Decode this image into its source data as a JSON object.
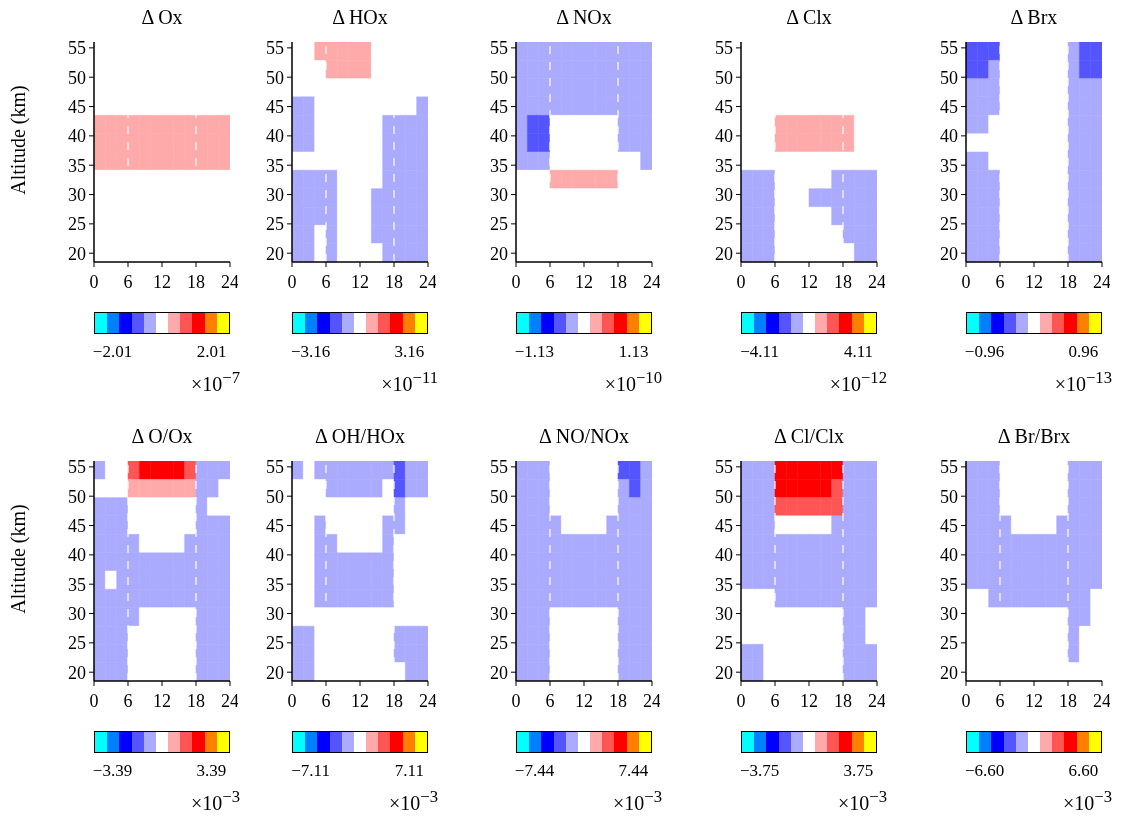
{
  "chart_data": [
    {
      "type": "heatmap",
      "title": "Δ Ox",
      "ylabel": "Altitude (km)",
      "x": [
        1,
        3,
        5,
        7,
        9,
        11,
        13,
        15,
        17,
        19,
        21,
        23
      ],
      "y": [
        54.4,
        51.3,
        48.2,
        45.1,
        41.9,
        38.8,
        35.7,
        32.6,
        29.4,
        26.3,
        23.2,
        20.1
      ],
      "xlim": [
        0,
        24
      ],
      "xticks": [
        0,
        6,
        12,
        18,
        24
      ],
      "ylim": [
        18.5,
        56
      ],
      "yticks": [
        20,
        25,
        30,
        35,
        40,
        45,
        50,
        55
      ],
      "clim": [
        -2.76,
        2.76
      ],
      "cticks": [
        {
          "value": -2.01,
          "label": "−2.01"
        },
        {
          "value": 2.01,
          "label": "2.01"
        }
      ],
      "clabel": "×10$^{−7}$",
      "ref_lines": [
        {
          "axis": "x",
          "value": 6,
          "color": "#ffffff",
          "line_style": "dashed"
        },
        {
          "axis": "x",
          "value": 18,
          "color": "#ffffff",
          "line_style": "dashed"
        }
      ],
      "cells": [
        [
          0,
          0,
          0,
          0,
          0,
          0,
          0,
          0,
          0,
          0,
          0,
          0
        ],
        [
          0,
          0,
          0,
          0,
          0,
          0,
          0,
          0,
          0,
          0,
          0,
          0
        ],
        [
          0,
          0,
          0,
          0,
          0,
          0,
          0,
          0,
          0,
          0,
          0,
          0
        ],
        [
          0,
          0,
          0,
          0,
          0,
          0,
          0,
          0,
          0,
          0,
          0,
          0
        ],
        [
          0.5,
          0.5,
          0.5,
          0.5,
          0.5,
          0.5,
          0.5,
          0.5,
          0.5,
          0.5,
          0.5,
          0.5
        ],
        [
          0.5,
          0.5,
          0.5,
          0.5,
          0.5,
          0.5,
          0.5,
          0.5,
          0.5,
          0.5,
          0.5,
          0.5
        ],
        [
          0.5,
          0.5,
          0.5,
          0.5,
          0.5,
          0.5,
          0.5,
          0.5,
          0.5,
          0.5,
          0.5,
          0.5
        ],
        [
          0,
          0,
          0,
          0,
          0,
          0,
          0,
          0,
          0,
          0,
          0,
          0
        ],
        [
          0,
          0,
          0,
          0,
          0,
          0,
          0,
          0,
          0,
          0,
          0,
          0
        ],
        [
          0,
          0,
          0,
          0,
          0,
          0,
          0,
          0,
          0,
          0,
          0,
          0
        ],
        [
          0,
          0,
          0,
          0,
          0,
          0,
          0,
          0,
          0,
          0,
          0,
          0
        ],
        [
          0,
          0,
          0,
          0,
          0,
          0,
          0,
          0,
          0,
          0,
          0,
          0
        ]
      ]
    },
    {
      "type": "heatmap",
      "title": "Δ HOx",
      "x": [
        1,
        3,
        5,
        7,
        9,
        11,
        13,
        15,
        17,
        19,
        21,
        23
      ],
      "y": [
        54.4,
        51.3,
        48.2,
        45.1,
        41.9,
        38.8,
        35.7,
        32.6,
        29.4,
        26.3,
        23.2,
        20.1
      ],
      "xlim": [
        0,
        24
      ],
      "xticks": [
        0,
        6,
        12,
        18,
        24
      ],
      "ylim": [
        18.5,
        56
      ],
      "yticks": [
        20,
        25,
        30,
        35,
        40,
        45,
        50,
        55
      ],
      "clim": [
        -4.35,
        4.35
      ],
      "cticks": [
        {
          "value": -3.16,
          "label": "−3.16"
        },
        {
          "value": 3.16,
          "label": "3.16"
        }
      ],
      "clabel": "×10$^{−11}$",
      "ref_lines": [
        {
          "axis": "x",
          "value": 6,
          "color": "#ffffff",
          "line_style": "dashed"
        },
        {
          "axis": "x",
          "value": 18,
          "color": "#ffffff",
          "line_style": "dashed"
        }
      ],
      "cells": [
        [
          0,
          0,
          0.79,
          0.79,
          0.79,
          0.79,
          0.79,
          0,
          0,
          0,
          0,
          0
        ],
        [
          0,
          0,
          0,
          0.79,
          0.79,
          0.79,
          0.79,
          0,
          0,
          0,
          0,
          0
        ],
        [
          0,
          0,
          0,
          0,
          0,
          0,
          0,
          0,
          0,
          0,
          0,
          0
        ],
        [
          -0.79,
          -0.79,
          0,
          0,
          0,
          0,
          0,
          0,
          0,
          0,
          0,
          -0.79
        ],
        [
          -0.79,
          -0.79,
          0,
          0,
          0,
          0,
          0,
          0,
          -0.79,
          -0.79,
          -0.79,
          -0.79
        ],
        [
          -0.79,
          -0.79,
          0,
          0,
          0,
          0,
          0,
          0,
          -0.79,
          -0.79,
          -0.79,
          -0.79
        ],
        [
          0,
          0,
          0,
          0,
          0,
          0,
          0,
          0,
          -0.79,
          -0.79,
          -0.79,
          -0.79
        ],
        [
          -0.79,
          -0.79,
          -0.79,
          -0.79,
          0,
          0,
          0,
          0,
          -0.79,
          -0.79,
          -0.79,
          -0.79
        ],
        [
          -0.79,
          -0.79,
          -0.79,
          -0.79,
          0,
          0,
          0,
          -0.79,
          -0.79,
          -0.79,
          -0.79,
          -0.79
        ],
        [
          -0.79,
          -0.79,
          -0.79,
          -0.79,
          0,
          0,
          0,
          -0.79,
          -0.79,
          -0.79,
          -0.79,
          -0.79
        ],
        [
          -0.79,
          -0.79,
          0,
          -0.79,
          0,
          0,
          0,
          -0.79,
          -0.79,
          -0.79,
          -0.79,
          -0.79
        ],
        [
          -0.79,
          -0.79,
          0,
          -0.79,
          0,
          0,
          0,
          0,
          -0.79,
          -0.79,
          -0.79,
          -0.79
        ]
      ]
    },
    {
      "type": "heatmap",
      "title": "Δ NOx",
      "x": [
        1,
        3,
        5,
        7,
        9,
        11,
        13,
        15,
        17,
        19,
        21,
        23
      ],
      "y": [
        54.4,
        51.3,
        48.2,
        45.1,
        41.9,
        38.8,
        35.7,
        32.6,
        29.4,
        26.3,
        23.2,
        20.1
      ],
      "xlim": [
        0,
        24
      ],
      "xticks": [
        0,
        6,
        12,
        18,
        24
      ],
      "ylim": [
        18.5,
        56
      ],
      "yticks": [
        20,
        25,
        30,
        35,
        40,
        45,
        50,
        55
      ],
      "clim": [
        -1.55,
        1.55
      ],
      "cticks": [
        {
          "value": -1.13,
          "label": "−1.13"
        },
        {
          "value": 1.13,
          "label": "1.13"
        }
      ],
      "clabel": "×10$^{−10}$",
      "ref_lines": [
        {
          "axis": "x",
          "value": 6,
          "color": "#ffffff",
          "line_style": "dashed"
        },
        {
          "axis": "x",
          "value": 18,
          "color": "#ffffff",
          "line_style": "dashed"
        }
      ],
      "cells": [
        [
          -0.28,
          -0.28,
          -0.28,
          -0.28,
          -0.28,
          -0.28,
          -0.28,
          -0.28,
          -0.28,
          -0.28,
          -0.28,
          -0.28
        ],
        [
          -0.28,
          -0.28,
          -0.28,
          -0.28,
          -0.28,
          -0.28,
          -0.28,
          -0.28,
          -0.28,
          -0.28,
          -0.28,
          -0.28
        ],
        [
          -0.28,
          -0.28,
          -0.28,
          -0.28,
          -0.28,
          -0.28,
          -0.28,
          -0.28,
          -0.28,
          -0.28,
          -0.28,
          -0.28
        ],
        [
          -0.28,
          -0.28,
          -0.28,
          -0.28,
          -0.28,
          -0.28,
          -0.28,
          -0.28,
          -0.28,
          -0.28,
          -0.28,
          -0.28
        ],
        [
          -0.28,
          -0.57,
          -0.57,
          0,
          0,
          0,
          0,
          0,
          0,
          -0.28,
          -0.28,
          -0.28
        ],
        [
          -0.28,
          -0.57,
          -0.57,
          0,
          0,
          0,
          0,
          0,
          0,
          -0.28,
          -0.28,
          -0.28
        ],
        [
          -0.28,
          -0.28,
          -0.28,
          0,
          0,
          0,
          0,
          0,
          0,
          0,
          0,
          -0.28
        ],
        [
          0,
          0,
          0,
          0.28,
          0.28,
          0.28,
          0.28,
          0.28,
          0.28,
          0,
          0,
          0
        ],
        [
          0,
          0,
          0,
          0,
          0,
          0,
          0,
          0,
          0,
          0,
          0,
          0
        ],
        [
          0,
          0,
          0,
          0,
          0,
          0,
          0,
          0,
          0,
          0,
          0,
          0
        ],
        [
          0,
          0,
          0,
          0,
          0,
          0,
          0,
          0,
          0,
          0,
          0,
          0
        ],
        [
          0,
          0,
          0,
          0,
          0,
          0,
          0,
          0,
          0,
          0,
          0,
          0
        ]
      ]
    },
    {
      "type": "heatmap",
      "title": "Δ Clx",
      "x": [
        1,
        3,
        5,
        7,
        9,
        11,
        13,
        15,
        17,
        19,
        21,
        23
      ],
      "y": [
        54.4,
        51.3,
        48.2,
        45.1,
        41.9,
        38.8,
        35.7,
        32.6,
        29.4,
        26.3,
        23.2,
        20.1
      ],
      "xlim": [
        0,
        24
      ],
      "xticks": [
        0,
        6,
        12,
        18,
        24
      ],
      "ylim": [
        18.5,
        56
      ],
      "yticks": [
        20,
        25,
        30,
        35,
        40,
        45,
        50,
        55
      ],
      "clim": [
        -5.65,
        5.65
      ],
      "cticks": [
        {
          "value": -4.11,
          "label": "−4.11"
        },
        {
          "value": 4.11,
          "label": "4.11"
        }
      ],
      "clabel": "×10$^{−12}$",
      "ref_lines": [
        {
          "axis": "x",
          "value": 6,
          "color": "#ffffff",
          "line_style": "dashed"
        },
        {
          "axis": "x",
          "value": 18,
          "color": "#ffffff",
          "line_style": "dashed"
        }
      ],
      "cells": [
        [
          0,
          0,
          0,
          0,
          0,
          0,
          0,
          0,
          0,
          0,
          0,
          0
        ],
        [
          0,
          0,
          0,
          0,
          0,
          0,
          0,
          0,
          0,
          0,
          0,
          0
        ],
        [
          0,
          0,
          0,
          0,
          0,
          0,
          0,
          0,
          0,
          0,
          0,
          0
        ],
        [
          0,
          0,
          0,
          0,
          0,
          0,
          0,
          0,
          0,
          0,
          0,
          0
        ],
        [
          0,
          0,
          0,
          1.03,
          1.03,
          1.03,
          1.03,
          1.03,
          1.03,
          1.03,
          0,
          0
        ],
        [
          0,
          0,
          0,
          1.03,
          1.03,
          1.03,
          1.03,
          1.03,
          1.03,
          1.03,
          0,
          0
        ],
        [
          0,
          0,
          0,
          0,
          0,
          0,
          0,
          0,
          0,
          0,
          0,
          0
        ],
        [
          -1.03,
          -1.03,
          -1.03,
          0,
          0,
          0,
          0,
          0,
          -1.03,
          -1.03,
          -1.03,
          -1.03
        ],
        [
          -1.03,
          -1.03,
          -1.03,
          0,
          0,
          0,
          -1.03,
          -1.03,
          -1.03,
          -1.03,
          -1.03,
          -1.03
        ],
        [
          -1.03,
          -1.03,
          -1.03,
          0,
          0,
          0,
          0,
          0,
          -1.03,
          -1.03,
          -1.03,
          -1.03
        ],
        [
          -1.03,
          -1.03,
          -1.03,
          0,
          0,
          0,
          0,
          0,
          0,
          -1.03,
          -1.03,
          -1.03
        ],
        [
          -1.03,
          -1.03,
          -1.03,
          0,
          0,
          0,
          0,
          0,
          0,
          0,
          -1.03,
          -1.03
        ]
      ]
    },
    {
      "type": "heatmap",
      "title": "Δ Brx",
      "x": [
        1,
        3,
        5,
        7,
        9,
        11,
        13,
        15,
        17,
        19,
        21,
        23
      ],
      "y": [
        54.4,
        51.3,
        48.2,
        45.1,
        41.9,
        38.8,
        35.7,
        32.6,
        29.4,
        26.3,
        23.2,
        20.1
      ],
      "xlim": [
        0,
        24
      ],
      "xticks": [
        0,
        6,
        12,
        18,
        24
      ],
      "ylim": [
        18.5,
        56
      ],
      "yticks": [
        20,
        25,
        30,
        35,
        40,
        45,
        50,
        55
      ],
      "clim": [
        -1.32,
        1.32
      ],
      "cticks": [
        {
          "value": -0.96,
          "label": "−0.96"
        },
        {
          "value": 0.96,
          "label": "0.96"
        }
      ],
      "clabel": "×10$^{−13}$",
      "ref_lines": [
        {
          "axis": "x",
          "value": 6,
          "color": "#ffffff",
          "line_style": "dashed"
        },
        {
          "axis": "x",
          "value": 18,
          "color": "#ffffff",
          "line_style": "dashed"
        }
      ],
      "cells": [
        [
          -0.48,
          -0.48,
          -0.48,
          0,
          0,
          0,
          0,
          0,
          0,
          -0.24,
          -0.48,
          -0.48
        ],
        [
          -0.48,
          -0.48,
          -0.24,
          0,
          0,
          0,
          0,
          0,
          0,
          -0.24,
          -0.48,
          -0.48
        ],
        [
          -0.24,
          -0.24,
          -0.24,
          0,
          0,
          0,
          0,
          0,
          0,
          -0.24,
          -0.24,
          -0.24
        ],
        [
          -0.24,
          -0.24,
          -0.24,
          0,
          0,
          0,
          0,
          0,
          0,
          -0.24,
          -0.24,
          -0.24
        ],
        [
          -0.24,
          -0.24,
          0,
          0,
          0,
          0,
          0,
          0,
          0,
          -0.24,
          -0.24,
          -0.24
        ],
        [
          0,
          0,
          0,
          0,
          0,
          0,
          0,
          0,
          0,
          -0.24,
          -0.24,
          -0.24
        ],
        [
          -0.24,
          -0.24,
          0,
          0,
          0,
          0,
          0,
          0,
          0,
          -0.24,
          -0.24,
          -0.24
        ],
        [
          -0.24,
          -0.24,
          -0.24,
          0,
          0,
          0,
          0,
          0,
          0,
          -0.24,
          -0.24,
          -0.24
        ],
        [
          -0.24,
          -0.24,
          -0.24,
          0,
          0,
          0,
          0,
          0,
          0,
          -0.24,
          -0.24,
          -0.24
        ],
        [
          -0.24,
          -0.24,
          -0.24,
          0,
          0,
          0,
          0,
          0,
          0,
          -0.24,
          -0.24,
          -0.24
        ],
        [
          -0.24,
          -0.24,
          -0.24,
          0,
          0,
          0,
          0,
          0,
          0,
          -0.24,
          -0.24,
          -0.24
        ],
        [
          -0.24,
          -0.24,
          -0.24,
          0,
          0,
          0,
          0,
          0,
          0,
          -0.24,
          -0.24,
          -0.24
        ]
      ]
    },
    {
      "type": "heatmap",
      "title": "Δ O/Ox",
      "ylabel": "Altitude (km)",
      "x": [
        1,
        3,
        5,
        7,
        9,
        11,
        13,
        15,
        17,
        19,
        21,
        23
      ],
      "y": [
        54.4,
        51.3,
        48.2,
        45.1,
        41.9,
        38.8,
        35.7,
        32.6,
        29.4,
        26.3,
        23.2,
        20.1
      ],
      "xlim": [
        0,
        24
      ],
      "xticks": [
        0,
        6,
        12,
        18,
        24
      ],
      "ylim": [
        18.5,
        56
      ],
      "yticks": [
        20,
        25,
        30,
        35,
        40,
        45,
        50,
        55
      ],
      "clim": [
        -4.66,
        4.66
      ],
      "cticks": [
        {
          "value": -3.39,
          "label": "−3.39"
        },
        {
          "value": 3.39,
          "label": "3.39"
        }
      ],
      "clabel": "×10$^{−3}$",
      "ref_lines": [
        {
          "axis": "x",
          "value": 6,
          "color": "#ffffff",
          "line_style": "dashed"
        },
        {
          "axis": "x",
          "value": 18,
          "color": "#ffffff",
          "line_style": "dashed"
        }
      ],
      "cells": [
        [
          -0.85,
          0,
          0,
          1.7,
          2.54,
          2.54,
          2.54,
          2.54,
          1.7,
          -0.85,
          -0.85,
          -0.85
        ],
        [
          0,
          0,
          0,
          0.85,
          0.85,
          0.85,
          0.85,
          0.85,
          0.85,
          -0.85,
          -0.85,
          0
        ],
        [
          -0.85,
          -0.85,
          -0.85,
          0,
          0,
          0,
          0,
          0,
          0,
          -0.85,
          0,
          0
        ],
        [
          -0.85,
          -0.85,
          -0.85,
          0,
          0,
          0,
          0,
          0,
          0,
          -0.85,
          -0.85,
          -0.85
        ],
        [
          -0.85,
          -0.85,
          -0.85,
          -0.85,
          0,
          0,
          0,
          0,
          -0.85,
          -0.85,
          -0.85,
          -0.85
        ],
        [
          -0.85,
          -0.85,
          -0.85,
          -0.85,
          -0.85,
          -0.85,
          -0.85,
          -0.85,
          -0.85,
          -0.85,
          -0.85,
          -0.85
        ],
        [
          -0.85,
          0,
          -0.85,
          -0.85,
          -0.85,
          -0.85,
          -0.85,
          -0.85,
          -0.85,
          -0.85,
          -0.85,
          -0.85
        ],
        [
          -0.85,
          -0.85,
          -0.85,
          -0.85,
          -0.85,
          -0.85,
          -0.85,
          -0.85,
          -0.85,
          -0.85,
          -0.85,
          -0.85
        ],
        [
          -0.85,
          -0.85,
          -0.85,
          -0.85,
          0,
          0,
          0,
          0,
          0,
          -0.85,
          -0.85,
          -0.85
        ],
        [
          -0.85,
          -0.85,
          -0.85,
          0,
          0,
          0,
          0,
          0,
          0,
          -0.85,
          -0.85,
          -0.85
        ],
        [
          -0.85,
          -0.85,
          -0.85,
          0,
          0,
          0,
          0,
          0,
          0,
          -0.85,
          -0.85,
          -0.85
        ],
        [
          -0.85,
          -0.85,
          -0.85,
          0,
          0,
          0,
          0,
          0,
          0,
          -0.85,
          -0.85,
          -0.85
        ]
      ]
    },
    {
      "type": "heatmap",
      "title": "Δ OH/HOx",
      "x": [
        1,
        3,
        5,
        7,
        9,
        11,
        13,
        15,
        17,
        19,
        21,
        23
      ],
      "y": [
        54.4,
        51.3,
        48.2,
        45.1,
        41.9,
        38.8,
        35.7,
        32.6,
        29.4,
        26.3,
        23.2,
        20.1
      ],
      "xlim": [
        0,
        24
      ],
      "xticks": [
        0,
        6,
        12,
        18,
        24
      ],
      "ylim": [
        18.5,
        56
      ],
      "yticks": [
        20,
        25,
        30,
        35,
        40,
        45,
        50,
        55
      ],
      "clim": [
        -9.78,
        9.78
      ],
      "cticks": [
        {
          "value": -7.11,
          "label": "−7.11"
        },
        {
          "value": 7.11,
          "label": "7.11"
        }
      ],
      "clabel": "×10$^{−3}$",
      "ref_lines": [
        {
          "axis": "x",
          "value": 6,
          "color": "#ffffff",
          "line_style": "dashed"
        },
        {
          "axis": "x",
          "value": 18,
          "color": "#ffffff",
          "line_style": "dashed"
        }
      ],
      "cells": [
        [
          -1.78,
          0,
          -1.78,
          -1.78,
          -1.78,
          -1.78,
          -1.78,
          -1.78,
          -1.78,
          -3.56,
          -1.78,
          -1.78
        ],
        [
          0,
          0,
          0,
          -1.78,
          -1.78,
          -1.78,
          -1.78,
          -1.78,
          0,
          -3.56,
          -1.78,
          -1.78
        ],
        [
          0,
          0,
          0,
          0,
          0,
          0,
          0,
          0,
          0,
          -1.78,
          0,
          0
        ],
        [
          0,
          0,
          -1.78,
          0,
          0,
          0,
          0,
          0,
          -1.78,
          -1.78,
          0,
          0
        ],
        [
          0,
          0,
          -1.78,
          -1.78,
          0,
          0,
          0,
          0,
          -1.78,
          0,
          0,
          0
        ],
        [
          0,
          0,
          -1.78,
          -1.78,
          -1.78,
          -1.78,
          -1.78,
          -1.78,
          -1.78,
          0,
          0,
          0
        ],
        [
          0,
          0,
          -1.78,
          -1.78,
          -1.78,
          -1.78,
          -1.78,
          -1.78,
          -1.78,
          0,
          0,
          0
        ],
        [
          0,
          0,
          -1.78,
          -1.78,
          -1.78,
          -1.78,
          -1.78,
          -1.78,
          -1.78,
          0,
          0,
          0
        ],
        [
          0,
          0,
          0,
          0,
          0,
          0,
          0,
          0,
          0,
          0,
          0,
          0
        ],
        [
          -1.78,
          -1.78,
          0,
          0,
          0,
          0,
          0,
          0,
          0,
          -1.78,
          -1.78,
          -1.78
        ],
        [
          -1.78,
          -1.78,
          0,
          0,
          0,
          0,
          0,
          0,
          0,
          -1.78,
          -1.78,
          -1.78
        ],
        [
          -1.78,
          -1.78,
          0,
          0,
          0,
          0,
          0,
          0,
          0,
          0,
          -1.78,
          -1.78
        ]
      ]
    },
    {
      "type": "heatmap",
      "title": "Δ NO/NOx",
      "x": [
        1,
        3,
        5,
        7,
        9,
        11,
        13,
        15,
        17,
        19,
        21,
        23
      ],
      "y": [
        54.4,
        51.3,
        48.2,
        45.1,
        41.9,
        38.8,
        35.7,
        32.6,
        29.4,
        26.3,
        23.2,
        20.1
      ],
      "xlim": [
        0,
        24
      ],
      "xticks": [
        0,
        6,
        12,
        18,
        24
      ],
      "ylim": [
        18.5,
        56
      ],
      "yticks": [
        20,
        25,
        30,
        35,
        40,
        45,
        50,
        55
      ],
      "clim": [
        -10.23,
        10.23
      ],
      "cticks": [
        {
          "value": -7.44,
          "label": "−7.44"
        },
        {
          "value": 7.44,
          "label": "7.44"
        }
      ],
      "clabel": "×10$^{−3}$",
      "ref_lines": [
        {
          "axis": "x",
          "value": 6,
          "color": "#ffffff",
          "line_style": "dashed"
        },
        {
          "axis": "x",
          "value": 18,
          "color": "#ffffff",
          "line_style": "dashed"
        }
      ],
      "cells": [
        [
          -1.86,
          -1.86,
          -1.86,
          0,
          0,
          0,
          0,
          0,
          0,
          -3.72,
          -3.72,
          -1.86
        ],
        [
          -1.86,
          -1.86,
          -1.86,
          0,
          0,
          0,
          0,
          0,
          0,
          -1.86,
          -3.72,
          -1.86
        ],
        [
          -1.86,
          -1.86,
          -1.86,
          0,
          0,
          0,
          0,
          0,
          0,
          -1.86,
          -1.86,
          -1.86
        ],
        [
          -1.86,
          -1.86,
          -1.86,
          -1.86,
          0,
          0,
          0,
          0,
          -1.86,
          -1.86,
          -1.86,
          -1.86
        ],
        [
          -1.86,
          -1.86,
          -1.86,
          -1.86,
          -1.86,
          -1.86,
          -1.86,
          -1.86,
          -1.86,
          -1.86,
          -1.86,
          -1.86
        ],
        [
          -1.86,
          -1.86,
          -1.86,
          -1.86,
          -1.86,
          -1.86,
          -1.86,
          -1.86,
          -1.86,
          -1.86,
          -1.86,
          -1.86
        ],
        [
          -1.86,
          -1.86,
          -1.86,
          -1.86,
          -1.86,
          -1.86,
          -1.86,
          -1.86,
          -1.86,
          -1.86,
          -1.86,
          -1.86
        ],
        [
          -1.86,
          -1.86,
          -1.86,
          -1.86,
          -1.86,
          -1.86,
          -1.86,
          -1.86,
          -1.86,
          -1.86,
          -1.86,
          -1.86
        ],
        [
          -1.86,
          -1.86,
          -1.86,
          0,
          0,
          0,
          0,
          0,
          0,
          -1.86,
          -1.86,
          -1.86
        ],
        [
          -1.86,
          -1.86,
          -1.86,
          0,
          0,
          0,
          0,
          0,
          0,
          -1.86,
          -1.86,
          -1.86
        ],
        [
          -1.86,
          -1.86,
          -1.86,
          0,
          0,
          0,
          0,
          0,
          0,
          -1.86,
          -1.86,
          -1.86
        ],
        [
          -1.86,
          -1.86,
          -1.86,
          0,
          0,
          0,
          0,
          0,
          0,
          -1.86,
          -1.86,
          -1.86
        ]
      ]
    },
    {
      "type": "heatmap",
      "title": "Δ Cl/Clx",
      "x": [
        1,
        3,
        5,
        7,
        9,
        11,
        13,
        15,
        17,
        19,
        21,
        23
      ],
      "y": [
        54.4,
        51.3,
        48.2,
        45.1,
        41.9,
        38.8,
        35.7,
        32.6,
        29.4,
        26.3,
        23.2,
        20.1
      ],
      "xlim": [
        0,
        24
      ],
      "xticks": [
        0,
        6,
        12,
        18,
        24
      ],
      "ylim": [
        18.5,
        56
      ],
      "yticks": [
        20,
        25,
        30,
        35,
        40,
        45,
        50,
        55
      ],
      "clim": [
        -5.16,
        5.16
      ],
      "cticks": [
        {
          "value": -3.75,
          "label": "−3.75"
        },
        {
          "value": 3.75,
          "label": "3.75"
        }
      ],
      "clabel": "×10$^{−3}$",
      "ref_lines": [
        {
          "axis": "x",
          "value": 6,
          "color": "#ffffff",
          "line_style": "dashed"
        },
        {
          "axis": "x",
          "value": 18,
          "color": "#ffffff",
          "line_style": "dashed"
        }
      ],
      "cells": [
        [
          -0.94,
          -0.94,
          -0.94,
          2.81,
          2.81,
          2.81,
          2.81,
          2.81,
          2.81,
          -0.94,
          -0.94,
          -0.94
        ],
        [
          -0.94,
          -0.94,
          -0.94,
          2.81,
          2.81,
          2.81,
          2.81,
          2.81,
          1.88,
          -0.94,
          -0.94,
          -0.94
        ],
        [
          -0.94,
          -0.94,
          -0.94,
          1.88,
          1.88,
          1.88,
          1.88,
          1.88,
          1.88,
          -0.94,
          -0.94,
          -0.94
        ],
        [
          -0.94,
          -0.94,
          -0.94,
          0,
          0,
          0,
          0,
          0,
          -0.94,
          -0.94,
          -0.94,
          -0.94
        ],
        [
          -0.94,
          -0.94,
          -0.94,
          -0.94,
          -0.94,
          -0.94,
          -0.94,
          -0.94,
          -0.94,
          -0.94,
          -0.94,
          -0.94
        ],
        [
          -0.94,
          -0.94,
          -0.94,
          -0.94,
          -0.94,
          -0.94,
          -0.94,
          -0.94,
          -0.94,
          -0.94,
          -0.94,
          -0.94
        ],
        [
          -0.94,
          -0.94,
          -0.94,
          -0.94,
          -0.94,
          -0.94,
          -0.94,
          -0.94,
          -0.94,
          -0.94,
          -0.94,
          -0.94
        ],
        [
          0,
          0,
          0,
          -0.94,
          -0.94,
          -0.94,
          -0.94,
          -0.94,
          -0.94,
          -0.94,
          -0.94,
          -0.94
        ],
        [
          0,
          0,
          0,
          0,
          0,
          0,
          0,
          0,
          0,
          -0.94,
          -0.94,
          0
        ],
        [
          0,
          0,
          0,
          0,
          0,
          0,
          0,
          0,
          0,
          -0.94,
          -0.94,
          0
        ],
        [
          -0.94,
          -0.94,
          0,
          0,
          0,
          0,
          0,
          0,
          0,
          -0.94,
          -0.94,
          -0.94
        ],
        [
          -0.94,
          -0.94,
          0,
          0,
          0,
          0,
          0,
          0,
          0,
          -0.94,
          -0.94,
          -0.94
        ]
      ]
    },
    {
      "type": "heatmap",
      "title": "Δ Br/Brx",
      "x": [
        1,
        3,
        5,
        7,
        9,
        11,
        13,
        15,
        17,
        19,
        21,
        23
      ],
      "y": [
        54.4,
        51.3,
        48.2,
        45.1,
        41.9,
        38.8,
        35.7,
        32.6,
        29.4,
        26.3,
        23.2,
        20.1
      ],
      "xlim": [
        0,
        24
      ],
      "xticks": [
        0,
        6,
        12,
        18,
        24
      ],
      "ylim": [
        18.5,
        56
      ],
      "yticks": [
        20,
        25,
        30,
        35,
        40,
        45,
        50,
        55
      ],
      "clim": [
        -9.08,
        9.08
      ],
      "cticks": [
        {
          "value": -6.6,
          "label": "−6.60"
        },
        {
          "value": 6.6,
          "label": "6.60"
        }
      ],
      "clabel": "×10$^{−3}$",
      "ref_lines": [
        {
          "axis": "x",
          "value": 6,
          "color": "#ffffff",
          "line_style": "dashed"
        },
        {
          "axis": "x",
          "value": 18,
          "color": "#ffffff",
          "line_style": "dashed"
        }
      ],
      "cells": [
        [
          -1.65,
          -1.65,
          -1.65,
          0,
          0,
          0,
          0,
          0,
          0,
          -1.65,
          -1.65,
          -1.65
        ],
        [
          -1.65,
          -1.65,
          -1.65,
          0,
          0,
          0,
          0,
          0,
          0,
          -1.65,
          -1.65,
          -1.65
        ],
        [
          -1.65,
          -1.65,
          -1.65,
          0,
          0,
          0,
          0,
          0,
          0,
          -1.65,
          -1.65,
          -1.65
        ],
        [
          -1.65,
          -1.65,
          -1.65,
          -1.65,
          0,
          0,
          0,
          0,
          -1.65,
          -1.65,
          -1.65,
          -1.65
        ],
        [
          -1.65,
          -1.65,
          -1.65,
          -1.65,
          -1.65,
          -1.65,
          -1.65,
          -1.65,
          -1.65,
          -1.65,
          -1.65,
          -1.65
        ],
        [
          -1.65,
          -1.65,
          -1.65,
          -1.65,
          -1.65,
          -1.65,
          -1.65,
          -1.65,
          -1.65,
          -1.65,
          -1.65,
          -1.65
        ],
        [
          -1.65,
          -1.65,
          -1.65,
          -1.65,
          -1.65,
          -1.65,
          -1.65,
          -1.65,
          -1.65,
          -1.65,
          -1.65,
          -1.65
        ],
        [
          0,
          0,
          -1.65,
          -1.65,
          -1.65,
          -1.65,
          -1.65,
          -1.65,
          -1.65,
          -1.65,
          -1.65,
          0
        ],
        [
          0,
          0,
          0,
          0,
          0,
          0,
          0,
          0,
          0,
          -1.65,
          -1.65,
          0
        ],
        [
          0,
          0,
          0,
          0,
          0,
          0,
          0,
          0,
          0,
          -1.65,
          0,
          0
        ],
        [
          0,
          0,
          0,
          0,
          0,
          0,
          0,
          0,
          0,
          -1.65,
          0,
          0
        ],
        [
          0,
          0,
          0,
          0,
          0,
          0,
          0,
          0,
          0,
          0,
          0,
          0
        ]
      ]
    }
  ]
}
